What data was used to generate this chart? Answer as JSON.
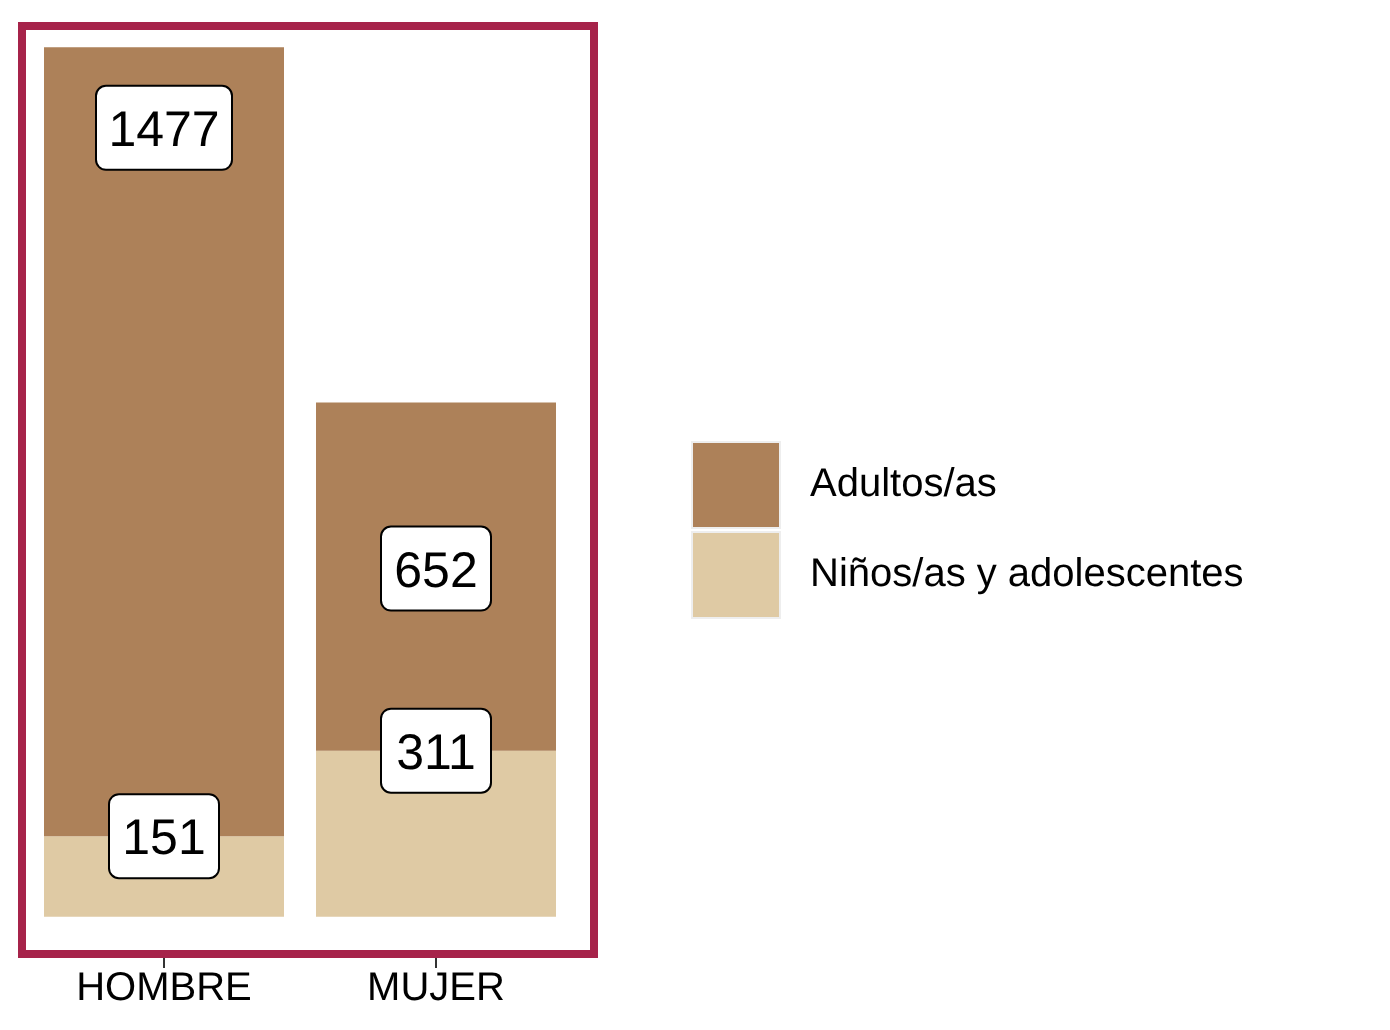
{
  "chart_data": {
    "type": "bar",
    "stacked": true,
    "categories": [
      "HOMBRE",
      "MUJER"
    ],
    "series": [
      {
        "name": "Niños/as y adolescentes",
        "color": "#dfcaa4",
        "values": [
          151,
          311
        ]
      },
      {
        "name": "Adultos/as",
        "color": "#ad8159",
        "values": [
          1477,
          652
        ]
      }
    ],
    "data_labels": true,
    "legend": "right",
    "grid": false
  }
}
